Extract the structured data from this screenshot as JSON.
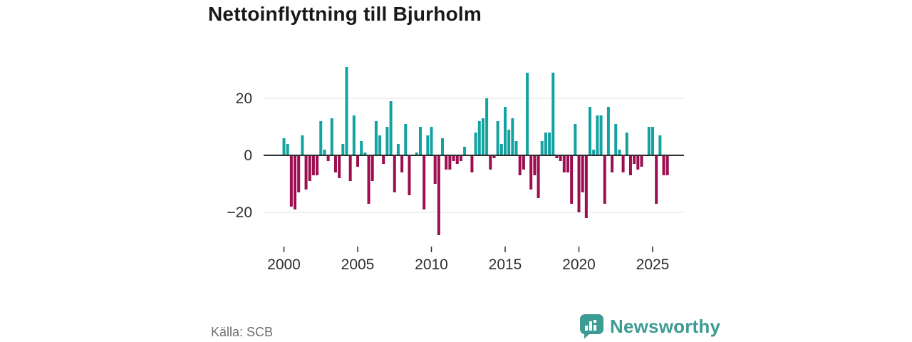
{
  "title": "Nettoinflyttning till Bjurholm",
  "source": "Källa: SCB",
  "branding": {
    "name": "Newsworthy",
    "icon": "bar-chart-speech-bubble-icon",
    "color": "#3e9b94"
  },
  "colors": {
    "positive_bar": "#12a2a0",
    "negative_bar": "#9d0d4f",
    "zero_line": "#2e2e2e",
    "gridline": "#e1e1e1",
    "axis_text": "#2f2f2f",
    "title_text": "#191919",
    "source_text": "#6f6f6f",
    "background": "#ffffff"
  },
  "chart_data": {
    "type": "bar",
    "title": "Nettoinflyttning till Bjurholm",
    "xlabel": "",
    "ylabel": "",
    "frequency": "quarterly",
    "start_period": "2000 Q1",
    "legend": "none",
    "grid": "horizontal",
    "ylim": [
      -30,
      33
    ],
    "y_ticks": [
      {
        "label": "20",
        "value": 20
      },
      {
        "label": "0",
        "value": 0
      },
      {
        "label": "−20",
        "value": -20
      }
    ],
    "y_gridlines": [
      20,
      -20
    ],
    "x_ticks": [
      {
        "label": "2000",
        "slot": 0
      },
      {
        "label": "2005",
        "slot": 20
      },
      {
        "label": "2010",
        "slot": 40
      },
      {
        "label": "2015",
        "slot": 60
      },
      {
        "label": "2020",
        "slot": 80
      },
      {
        "label": "2025",
        "slot": 100
      }
    ],
    "values": [
      6,
      4,
      -18,
      -19,
      -13,
      7,
      -12,
      -9,
      -7,
      -7,
      12,
      2,
      -2,
      13,
      -6,
      -8,
      4,
      31,
      -9,
      14,
      -4,
      5,
      1,
      -17,
      -9,
      12,
      7,
      -3,
      10,
      19,
      -13,
      4,
      -6,
      11,
      -14,
      0,
      1,
      10,
      -19,
      7,
      10,
      -10,
      -28,
      6,
      -5,
      -5,
      -2,
      -3,
      -2,
      3,
      0,
      -6,
      8,
      12,
      13,
      20,
      -5,
      -1,
      12,
      4,
      17,
      9,
      13,
      5,
      -7,
      -5,
      29,
      -12,
      -7,
      -15,
      5,
      8,
      8,
      29,
      -1,
      -2,
      -6,
      -6,
      -17,
      11,
      -20,
      -13,
      -22,
      17,
      2,
      14,
      14,
      -17,
      17,
      -6,
      11,
      2,
      -6,
      8,
      -7,
      -3,
      -5,
      -4,
      0,
      10,
      10,
      -17,
      7,
      -7,
      -7
    ]
  }
}
